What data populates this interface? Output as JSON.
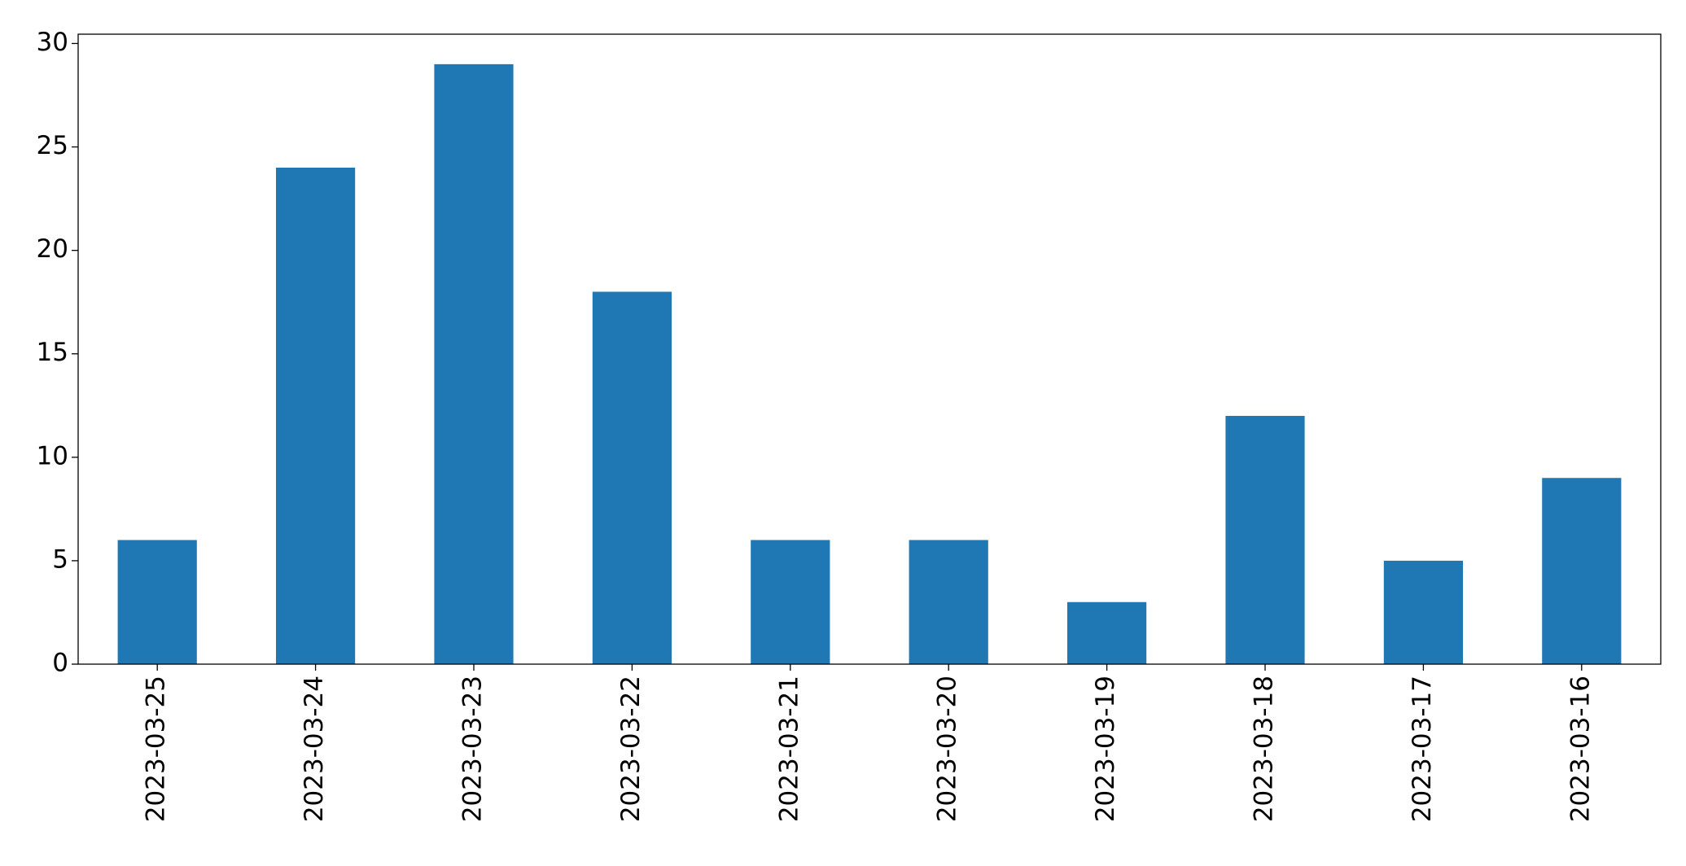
{
  "chart_data": {
    "type": "bar",
    "categories": [
      "2023-03-25",
      "2023-03-24",
      "2023-03-23",
      "2023-03-22",
      "2023-03-21",
      "2023-03-20",
      "2023-03-19",
      "2023-03-18",
      "2023-03-17",
      "2023-03-16"
    ],
    "values": [
      6,
      24,
      29,
      18,
      6,
      6,
      3,
      12,
      5,
      9
    ],
    "color": "#1f77b4",
    "ylim": [
      0,
      30.45
    ],
    "yticks": [
      0,
      5,
      10,
      15,
      20,
      25,
      30
    ],
    "grid": false
  }
}
